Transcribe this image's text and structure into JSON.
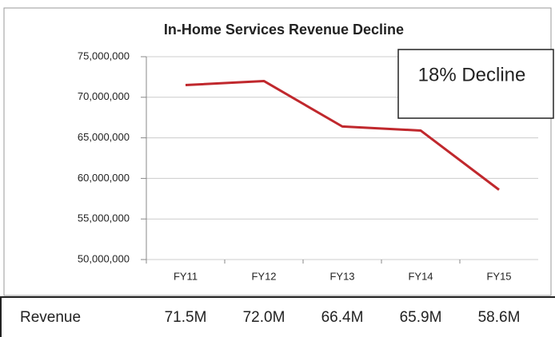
{
  "chart_data": {
    "type": "line",
    "title": "In-Home Services Revenue Decline",
    "categories": [
      "FY11",
      "FY12",
      "FY13",
      "FY14",
      "FY15"
    ],
    "series": [
      {
        "name": "Revenue",
        "color": "#c0282d",
        "values": [
          71500000,
          72000000,
          66400000,
          65900000,
          58600000
        ],
        "value_labels": [
          "71.5M",
          "72.0M",
          "66.4M",
          "65.9M",
          "58.6M"
        ]
      }
    ],
    "ylim": [
      50000000,
      75000000
    ],
    "yticks": [
      {
        "value": 50000000,
        "label": "50,000,000"
      },
      {
        "value": 55000000,
        "label": "55,000,000"
      },
      {
        "value": 60000000,
        "label": "60,000,000"
      },
      {
        "value": 65000000,
        "label": "65,000,000"
      },
      {
        "value": 70000000,
        "label": "70,000,000"
      },
      {
        "value": 75000000,
        "label": "75,000,000"
      }
    ],
    "grid": true,
    "annotation": "18% Decline"
  }
}
